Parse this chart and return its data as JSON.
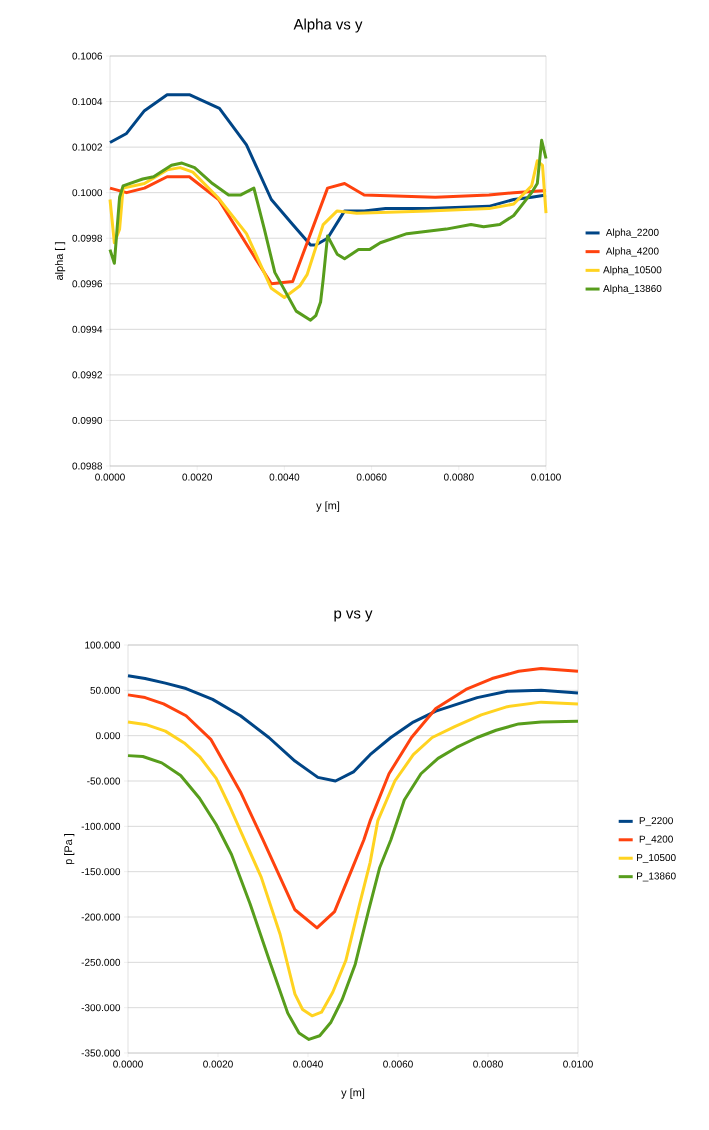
{
  "chart_data": [
    {
      "type": "line",
      "title": "Alpha vs y",
      "xlabel": "y [m]",
      "ylabel": "alpha [ ]",
      "grid": "y",
      "legend": "right",
      "xlim": [
        0,
        0.01
      ],
      "ylim": [
        0.0988,
        0.1006
      ],
      "xticks": [
        {
          "value": 0,
          "label": "0.0000"
        },
        {
          "value": 0.002,
          "label": "0.0020"
        },
        {
          "value": 0.004,
          "label": "0.0040"
        },
        {
          "value": 0.006,
          "label": "0.0060"
        },
        {
          "value": 0.008,
          "label": "0.0080"
        },
        {
          "value": 0.01,
          "label": "0.0100"
        }
      ],
      "yticks": [
        {
          "value": 0.0988,
          "label": "0.0988"
        },
        {
          "value": 0.099,
          "label": "0.0990"
        },
        {
          "value": 0.0992,
          "label": "0.0992"
        },
        {
          "value": 0.0994,
          "label": "0.0994"
        },
        {
          "value": 0.0996,
          "label": "0.0996"
        },
        {
          "value": 0.0998,
          "label": "0.0998"
        },
        {
          "value": 0.1,
          "label": "0.1000"
        },
        {
          "value": 0.1002,
          "label": "0.1002"
        },
        {
          "value": 0.1004,
          "label": "0.1004"
        },
        {
          "value": 0.1006,
          "label": "0.1006"
        }
      ],
      "series": [
        {
          "name": "Alpha_2200",
          "color": "#004586",
          "x": [
            0,
            0.00038,
            0.00079,
            0.00131,
            0.00182,
            0.00251,
            0.00313,
            0.0037,
            0.00419,
            0.0046,
            0.00472,
            0.00499,
            0.00538,
            0.00583,
            0.00632,
            0.0073,
            0.00869,
            0.00926,
            0.00967,
            0.01
          ],
          "values": [
            0.10022,
            0.10026,
            0.10036,
            0.10043,
            0.10043,
            0.10037,
            0.10021,
            0.09997,
            0.09986,
            0.09977,
            0.09977,
            0.0998,
            0.09992,
            0.09992,
            0.09993,
            0.09993,
            0.09994,
            0.09997,
            0.09998,
            0.09999
          ]
        },
        {
          "name": "Alpha_4200",
          "color": "#ff420e",
          "x": [
            0,
            0.00038,
            0.00079,
            0.00131,
            0.00182,
            0.00249,
            0.0037,
            0.00419,
            0.00499,
            0.00538,
            0.00583,
            0.00746,
            0.00869,
            0.00926,
            0.01
          ],
          "values": [
            0.10002,
            0.1,
            0.10002,
            0.10007,
            0.10007,
            0.09997,
            0.0996,
            0.09961,
            0.10002,
            0.10004,
            0.09999,
            0.09998,
            0.09999,
            0.1,
            0.10001
          ]
        },
        {
          "name": "Alpha_10500",
          "color": "#ffd320",
          "x": [
            0,
            0.0001,
            0.00022,
            0.0003,
            0.00079,
            0.00131,
            0.00161,
            0.0019,
            0.00247,
            0.00313,
            0.0037,
            0.004,
            0.00435,
            0.00452,
            0.00489,
            0.00521,
            0.00566,
            0.0073,
            0.00869,
            0.00926,
            0.00967,
            0.0098,
            0.00992,
            0.01
          ],
          "values": [
            0.09997,
            0.09978,
            0.09984,
            0.10002,
            0.10004,
            0.1001,
            0.10011,
            0.10009,
            0.09998,
            0.09982,
            0.09958,
            0.09954,
            0.09959,
            0.09964,
            0.09986,
            0.09992,
            0.09991,
            0.09992,
            0.09993,
            0.09995,
            0.10003,
            0.10014,
            0.10012,
            0.09991
          ]
        },
        {
          "name": "Alpha_13860",
          "color": "#579d1c",
          "x": [
            0,
            0.0001,
            0.00022,
            0.0003,
            0.00075,
            0.001,
            0.00141,
            0.00165,
            0.00194,
            0.00235,
            0.00272,
            0.003,
            0.0033,
            0.00354,
            0.00378,
            0.00427,
            0.0046,
            0.00472,
            0.00483,
            0.00489,
            0.00499,
            0.00521,
            0.00538,
            0.0057,
            0.00595,
            0.0062,
            0.00681,
            0.00771,
            0.00828,
            0.00857,
            0.00894,
            0.00926,
            0.00967,
            0.0098,
            0.0099,
            0.01
          ],
          "values": [
            0.09975,
            0.09969,
            0.09998,
            0.10003,
            0.10006,
            0.10007,
            0.10012,
            0.10013,
            0.10011,
            0.10004,
            0.09999,
            0.09999,
            0.10002,
            0.09984,
            0.09965,
            0.09948,
            0.09944,
            0.09946,
            0.09952,
            0.09962,
            0.09981,
            0.09973,
            0.09971,
            0.09975,
            0.09975,
            0.09978,
            0.09982,
            0.09984,
            0.09986,
            0.09985,
            0.09986,
            0.0999,
            0.1,
            0.10004,
            0.10023,
            0.10015
          ]
        }
      ]
    },
    {
      "type": "line",
      "title": "p vs y",
      "xlabel": "y [m]",
      "ylabel": "p [Pa ]",
      "grid": "y",
      "legend": "right",
      "xlim": [
        0,
        0.01
      ],
      "ylim": [
        -350,
        100
      ],
      "xticks": [
        {
          "value": 0,
          "label": "0.0000"
        },
        {
          "value": 0.002,
          "label": "0.0020"
        },
        {
          "value": 0.004,
          "label": "0.0040"
        },
        {
          "value": 0.006,
          "label": "0.0060"
        },
        {
          "value": 0.008,
          "label": "0.0080"
        },
        {
          "value": 0.01,
          "label": "0.0100"
        }
      ],
      "yticks": [
        {
          "value": -350,
          "label": "-350.000"
        },
        {
          "value": -300,
          "label": "-300.000"
        },
        {
          "value": -250,
          "label": "-250.000"
        },
        {
          "value": -200,
          "label": "-200.000"
        },
        {
          "value": -150,
          "label": "-150.000"
        },
        {
          "value": -100,
          "label": "-100.000"
        },
        {
          "value": -50,
          "label": "-50.000"
        },
        {
          "value": 0,
          "label": "0.000"
        },
        {
          "value": 50,
          "label": "50.000"
        },
        {
          "value": 100,
          "label": "100.000"
        }
      ],
      "series": [
        {
          "name": "P_2200",
          "color": "#004586",
          "x": [
            0,
            0.00038,
            0.00083,
            0.00129,
            0.00188,
            0.0025,
            0.00313,
            0.00371,
            0.00422,
            0.00461,
            0.00501,
            0.00538,
            0.00584,
            0.00634,
            0.00684,
            0.00776,
            0.00843,
            0.00918,
            0.01
          ],
          "values": [
            66,
            63,
            58,
            52,
            40,
            22,
            -2,
            -28,
            -46,
            -50,
            -40,
            -21,
            -2,
            15,
            27,
            42,
            49,
            50,
            47
          ]
        },
        {
          "name": "P_4200",
          "color": "#ff420e",
          "x": [
            0,
            0.00038,
            0.00079,
            0.00129,
            0.00184,
            0.0025,
            0.003,
            0.00371,
            0.0042,
            0.00459,
            0.00497,
            0.00524,
            0.00538,
            0.0058,
            0.0063,
            0.00684,
            0.00751,
            0.00809,
            0.00868,
            0.00918,
            0.01
          ],
          "values": [
            45,
            42,
            35,
            22,
            -4,
            -62,
            -115,
            -192,
            -212,
            -194,
            -148,
            -115,
            -94,
            -42,
            -2,
            30,
            51,
            63,
            71,
            74,
            71
          ]
        },
        {
          "name": "P_10500",
          "color": "#ffd320",
          "x": [
            0,
            0.00042,
            0.00083,
            0.00125,
            0.00159,
            0.00196,
            0.00225,
            0.00259,
            0.00296,
            0.00338,
            0.00371,
            0.00388,
            0.00409,
            0.0043,
            0.00455,
            0.00484,
            0.00513,
            0.00538,
            0.00555,
            0.00593,
            0.00634,
            0.00676,
            0.00726,
            0.00785,
            0.00843,
            0.00918,
            0.01
          ],
          "values": [
            15,
            12,
            5,
            -8,
            -23,
            -47,
            -77,
            -115,
            -156,
            -219,
            -285,
            -302,
            -309,
            -305,
            -283,
            -248,
            -189,
            -140,
            -94,
            -50,
            -21,
            -2,
            10,
            23,
            32,
            37,
            35
          ]
        },
        {
          "name": "P_13860",
          "color": "#579d1c",
          "x": [
            0,
            0.00033,
            0.00075,
            0.00117,
            0.00159,
            0.00196,
            0.0023,
            0.00271,
            0.00317,
            0.00355,
            0.0038,
            0.00402,
            0.00426,
            0.00451,
            0.00476,
            0.00505,
            0.00534,
            0.00559,
            0.00584,
            0.00614,
            0.00651,
            0.00689,
            0.0073,
            0.00776,
            0.00818,
            0.00868,
            0.00918,
            0.01
          ],
          "values": [
            -22,
            -23,
            -30,
            -44,
            -69,
            -98,
            -131,
            -185,
            -252,
            -306,
            -328,
            -335,
            -331,
            -316,
            -291,
            -252,
            -194,
            -146,
            -115,
            -71,
            -42,
            -25,
            -13,
            -2,
            6,
            13,
            15,
            16
          ]
        }
      ]
    }
  ]
}
